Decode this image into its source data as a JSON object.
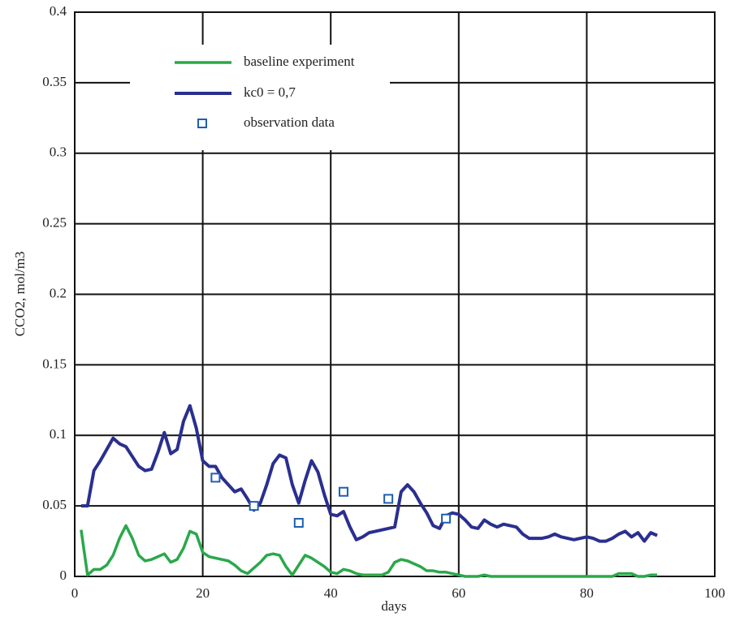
{
  "chart_data": {
    "type": "line",
    "x_label": "days",
    "y_label": "CCO2, mol/m3",
    "xlim": [
      0,
      100
    ],
    "xticks": [
      0,
      20,
      40,
      60,
      80,
      100
    ],
    "ylim": [
      0,
      0.4
    ],
    "yticks": [
      0,
      0.05,
      0.1,
      0.15,
      0.2,
      0.25,
      0.3,
      0.35,
      0.4
    ],
    "grid": true,
    "x": [
      1,
      2,
      3,
      4,
      5,
      6,
      7,
      8,
      9,
      10,
      11,
      12,
      13,
      14,
      15,
      16,
      17,
      18,
      19,
      20,
      21,
      22,
      23,
      24,
      25,
      26,
      27,
      28,
      29,
      30,
      31,
      32,
      33,
      34,
      35,
      36,
      37,
      38,
      39,
      40,
      41,
      42,
      43,
      44,
      45,
      46,
      47,
      48,
      49,
      50,
      51,
      52,
      53,
      54,
      55,
      56,
      57,
      58,
      59,
      60,
      61,
      62,
      63,
      64,
      65,
      66,
      67,
      68,
      69,
      70,
      71,
      72,
      73,
      74,
      75,
      76,
      77,
      78,
      79,
      80,
      81,
      82,
      83,
      84,
      85,
      86,
      87,
      88,
      89,
      90,
      91
    ],
    "series": [
      {
        "name": "baseline experiment",
        "color": "#2aa84a",
        "values": [
          0.033,
          0.001,
          0.005,
          0.005,
          0.008,
          0.015,
          0.027,
          0.036,
          0.027,
          0.015,
          0.011,
          0.012,
          0.014,
          0.016,
          0.01,
          0.012,
          0.02,
          0.032,
          0.03,
          0.017,
          0.014,
          0.013,
          0.012,
          0.011,
          0.008,
          0.004,
          0.002,
          0.006,
          0.01,
          0.015,
          0.016,
          0.015,
          0.007,
          0.001,
          0.008,
          0.015,
          0.013,
          0.01,
          0.007,
          0.003,
          0.002,
          0.005,
          0.004,
          0.002,
          0.001,
          0.001,
          0.001,
          0.001,
          0.003,
          0.01,
          0.012,
          0.011,
          0.009,
          0.007,
          0.004,
          0.004,
          0.003,
          0.003,
          0.002,
          0.001,
          0,
          0,
          0,
          0.001,
          0,
          0,
          0,
          0,
          0,
          0,
          0,
          0,
          0,
          0,
          0,
          0,
          0,
          0,
          0,
          0,
          0,
          0,
          0,
          0,
          0.002,
          0.002,
          0.002,
          0,
          0,
          0.001,
          0.001
        ]
      },
      {
        "name": "kc0 = 0,7",
        "color": "#2a2f8f",
        "values": [
          0.05,
          0.05,
          0.075,
          0.082,
          0.09,
          0.098,
          0.094,
          0.092,
          0.085,
          0.078,
          0.075,
          0.076,
          0.088,
          0.102,
          0.087,
          0.09,
          0.11,
          0.121,
          0.105,
          0.082,
          0.078,
          0.078,
          0.07,
          0.065,
          0.06,
          0.062,
          0.055,
          0.047,
          0.052,
          0.065,
          0.08,
          0.086,
          0.084,
          0.065,
          0.052,
          0.068,
          0.082,
          0.074,
          0.058,
          0.044,
          0.043,
          0.046,
          0.035,
          0.026,
          0.028,
          0.031,
          0.032,
          0.033,
          0.034,
          0.035,
          0.06,
          0.065,
          0.06,
          0.052,
          0.045,
          0.036,
          0.034,
          0.043,
          0.045,
          0.044,
          0.04,
          0.035,
          0.034,
          0.04,
          0.037,
          0.035,
          0.037,
          0.036,
          0.035,
          0.03,
          0.027,
          0.027,
          0.027,
          0.028,
          0.03,
          0.028,
          0.027,
          0.026,
          0.027,
          0.028,
          0.027,
          0.025,
          0.025,
          0.027,
          0.03,
          0.032,
          0.028,
          0.031,
          0.025,
          0.031,
          0.029
        ]
      }
    ],
    "observations": {
      "name": "observation data",
      "color": "#1f5fb0",
      "x": [
        22,
        28,
        35,
        42,
        49,
        58
      ],
      "y": [
        0.07,
        0.05,
        0.038,
        0.06,
        0.055,
        0.041
      ]
    }
  }
}
